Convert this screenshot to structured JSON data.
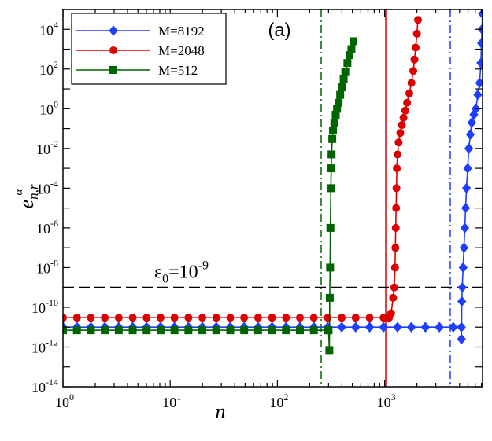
{
  "chart_data": {
    "type": "line",
    "panel_label": "(a)",
    "xlabel": "n",
    "ylabel": {
      "base": "e",
      "sub": "n,r",
      "sup": "α"
    },
    "xscale": "log",
    "yscale": "log",
    "xlim": [
      1,
      8192
    ],
    "ylim": [
      1e-14,
      100000.0
    ],
    "x_ticks": [
      {
        "value": 1,
        "base": "10",
        "exp": "0"
      },
      {
        "value": 10,
        "base": "10",
        "exp": "1"
      },
      {
        "value": 100,
        "base": "10",
        "exp": "2"
      },
      {
        "value": 1000,
        "base": "10",
        "exp": "3"
      }
    ],
    "y_ticks": [
      {
        "value": 1e-14,
        "base": "10",
        "exp": "-14"
      },
      {
        "value": 1e-12,
        "base": "10",
        "exp": "-12"
      },
      {
        "value": 1e-10,
        "base": "10",
        "exp": "-10"
      },
      {
        "value": 1e-08,
        "base": "10",
        "exp": "-8"
      },
      {
        "value": 1e-06,
        "base": "10",
        "exp": "-6"
      },
      {
        "value": 0.0001,
        "base": "10",
        "exp": "-4"
      },
      {
        "value": 0.01,
        "base": "10",
        "exp": "-2"
      },
      {
        "value": 1,
        "base": "10",
        "exp": "0"
      },
      {
        "value": 100,
        "base": "10",
        "exp": "2"
      },
      {
        "value": 10000,
        "base": "10",
        "exp": "4"
      }
    ],
    "legend_position": "top-left",
    "series": [
      {
        "name": "M=8192",
        "color": "#1f3fff",
        "marker": "diamond",
        "vline": 4096,
        "vline_style": "dashdot",
        "flat_level": 1e-11,
        "flat_start": 1,
        "flat_end": 5200,
        "dip": {
          "x": 5210,
          "y": 2.5e-12
        },
        "rise": [
          [
            5250,
            2e-10
          ],
          [
            5300,
            1e-09
          ],
          [
            5400,
            1e-08
          ],
          [
            5500,
            1e-07
          ],
          [
            5600,
            1e-06
          ],
          [
            5700,
            1e-05
          ],
          [
            5800,
            0.0001
          ],
          [
            5950,
            0.001
          ],
          [
            6100,
            0.01
          ],
          [
            6300,
            0.05
          ],
          [
            6500,
            0.2
          ],
          [
            6800,
            0.5
          ],
          [
            7100,
            1
          ],
          [
            7400,
            5
          ],
          [
            7700,
            20
          ],
          [
            7900,
            200
          ],
          [
            8000,
            2000
          ],
          [
            8100,
            10000
          ],
          [
            8192,
            60000
          ]
        ]
      },
      {
        "name": "M=2048",
        "color": "#dd0000",
        "marker": "circle",
        "vline": 1024,
        "vline_style": "solid",
        "flat_level": 3e-11,
        "flat_start": 1,
        "flat_end": 1100,
        "dip": null,
        "rise": [
          [
            1150,
            5e-11
          ],
          [
            1200,
            3e-10
          ],
          [
            1230,
            1e-09
          ],
          [
            1250,
            1e-08
          ],
          [
            1260,
            1e-07
          ],
          [
            1270,
            1e-06
          ],
          [
            1280,
            1e-05
          ],
          [
            1290,
            0.0001
          ],
          [
            1300,
            0.001
          ],
          [
            1320,
            0.005
          ],
          [
            1350,
            0.02
          ],
          [
            1400,
            0.06
          ],
          [
            1450,
            0.15
          ],
          [
            1500,
            0.35
          ],
          [
            1560,
            0.8
          ],
          [
            1620,
            2
          ],
          [
            1700,
            6
          ],
          [
            1780,
            20
          ],
          [
            1850,
            80
          ],
          [
            1900,
            300
          ],
          [
            1950,
            1200
          ],
          [
            2000,
            6000
          ],
          [
            2048,
            30000
          ]
        ]
      },
      {
        "name": "M=512",
        "color": "#006400",
        "marker": "square",
        "vline": 256,
        "vline_style": "dashdot",
        "flat_level": 7e-12,
        "flat_start": 1,
        "flat_end": 300,
        "dip": {
          "x": 305,
          "y": 7e-13
        },
        "rise": [
          [
            308,
            3e-10
          ],
          [
            310,
            1e-08
          ],
          [
            312,
            1e-06
          ],
          [
            315,
            0.0001
          ],
          [
            318,
            0.001
          ],
          [
            320,
            0.005
          ],
          [
            325,
            0.03
          ],
          [
            330,
            0.08
          ],
          [
            340,
            0.2
          ],
          [
            350,
            0.5
          ],
          [
            360,
            1
          ],
          [
            372,
            2
          ],
          [
            385,
            5
          ],
          [
            400,
            12
          ],
          [
            415,
            30
          ],
          [
            430,
            70
          ],
          [
            450,
            200
          ],
          [
            470,
            500
          ],
          [
            490,
            1000
          ],
          [
            512,
            2500
          ]
        ]
      }
    ],
    "hline": {
      "value": 1e-09,
      "style": "dashed",
      "label_base": "ε",
      "label_sub": "0",
      "label_eq": "=10",
      "label_exp": "-9"
    }
  }
}
